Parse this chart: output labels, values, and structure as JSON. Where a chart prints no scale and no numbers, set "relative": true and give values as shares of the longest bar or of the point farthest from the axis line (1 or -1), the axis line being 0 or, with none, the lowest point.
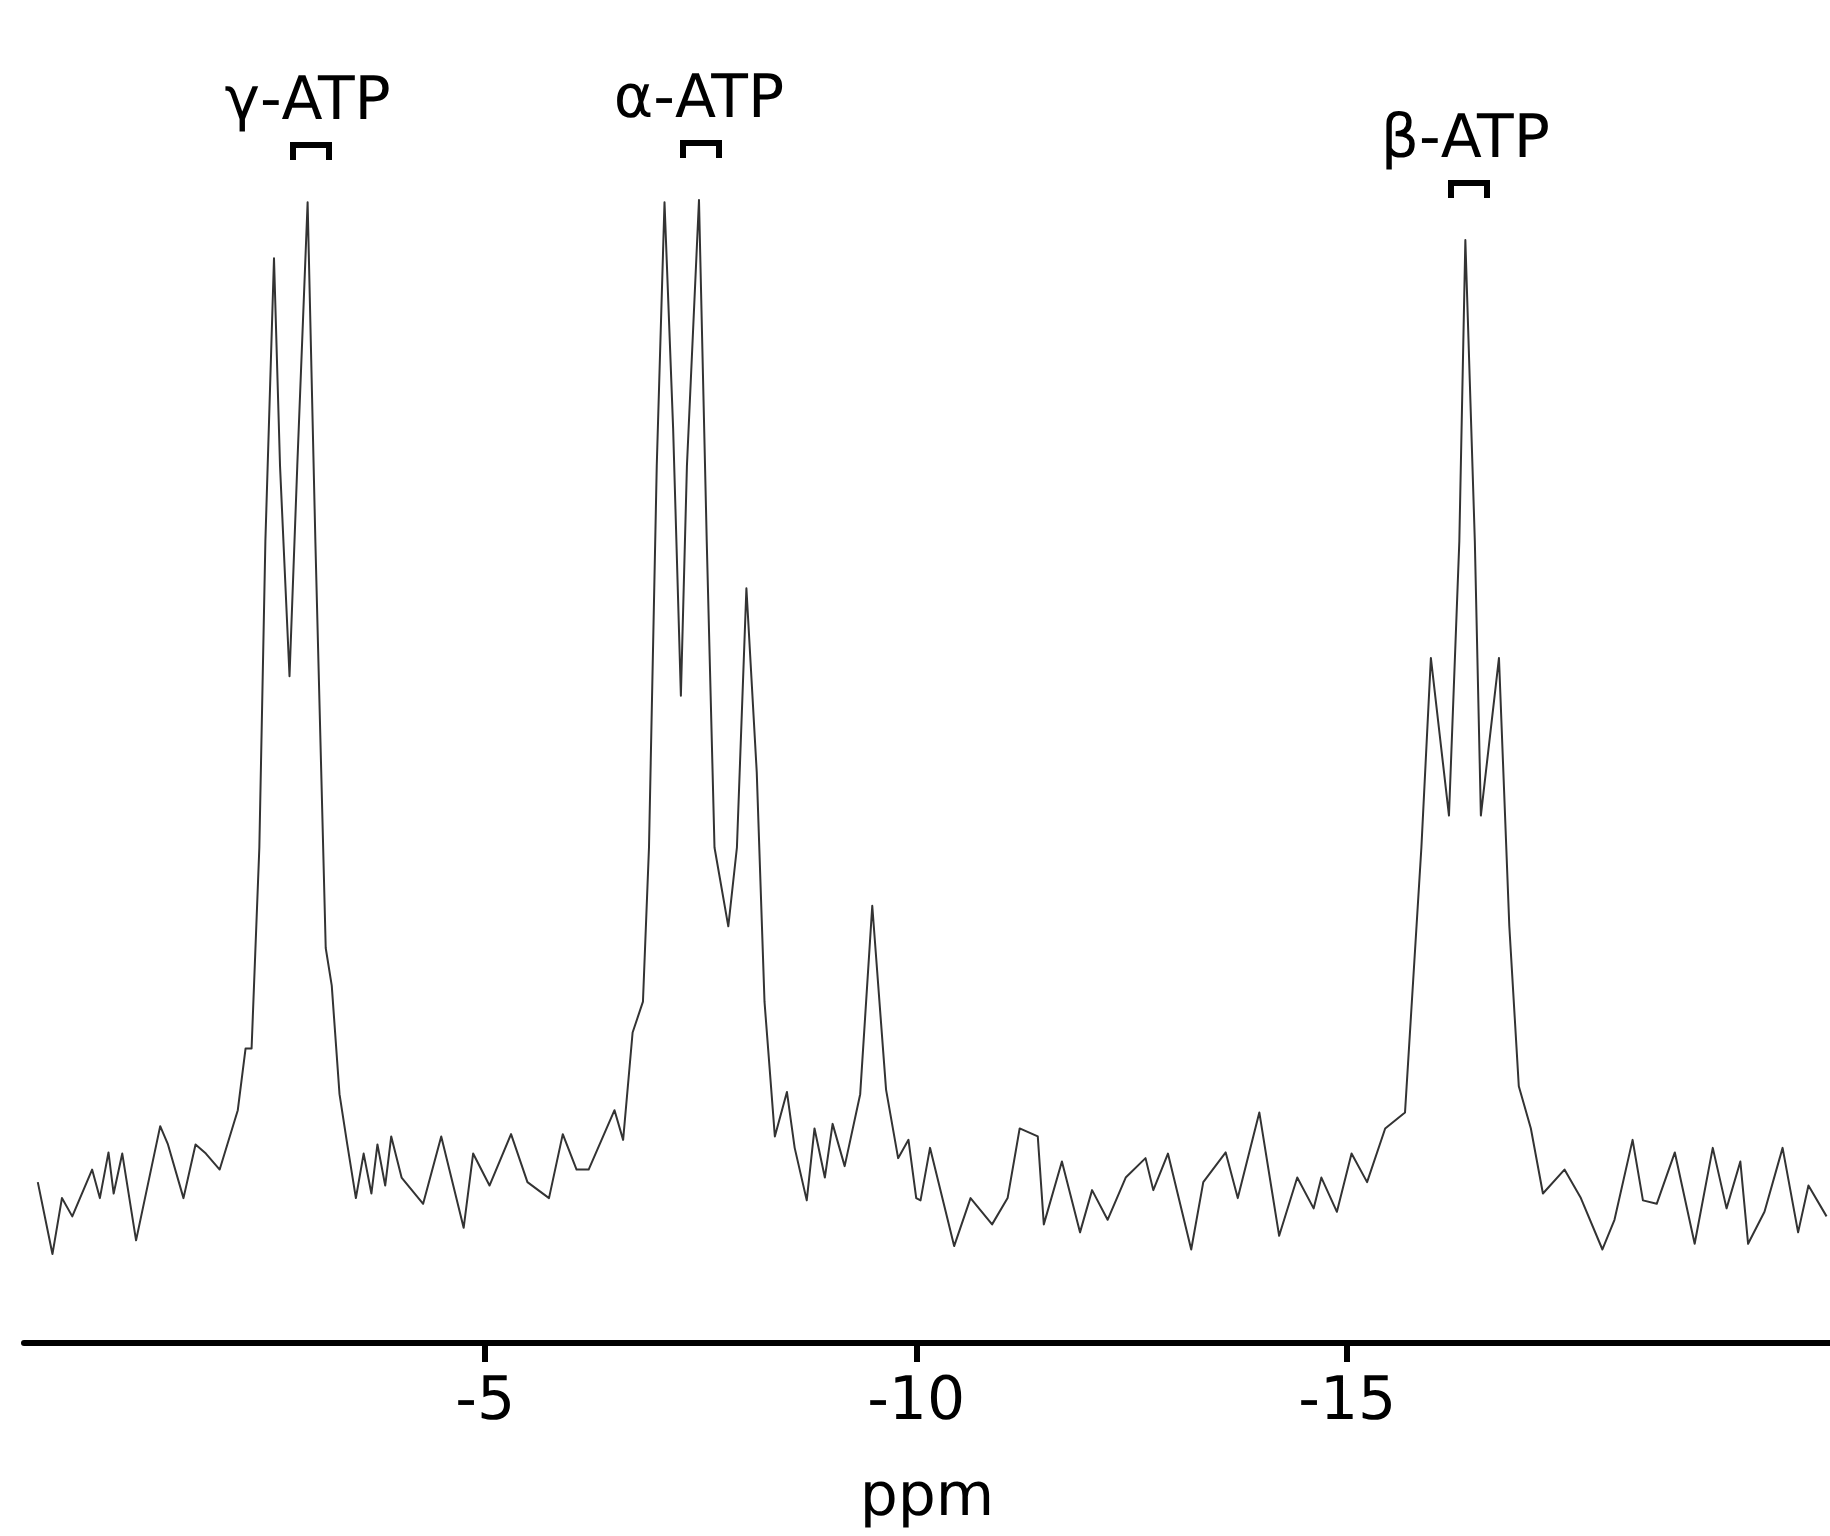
{
  "chart_data": {
    "type": "line",
    "relative": true,
    "xlabel": "ppm",
    "xlim": [
      0.35,
      -20.6
    ],
    "xticks": [
      -5,
      -10,
      -15
    ],
    "grid": false,
    "marker": "none",
    "line_style": "solid",
    "annotations": [
      {
        "text": "γ-ATP",
        "x": -2.94,
        "y": 0.998
      },
      {
        "text": "α-ATP",
        "x": -7.48,
        "y": 1.0
      },
      {
        "text": "β-ATP",
        "x": -16.37,
        "y": 0.965
      }
    ],
    "series": [
      {
        "color": "#333333",
        "x": [
          0.19,
          0.02,
          -0.09,
          -0.21,
          -0.44,
          -0.53,
          -0.63,
          -0.69,
          -0.79,
          -0.95,
          -1.23,
          -1.32,
          -1.5,
          -1.64,
          -1.76,
          -1.92,
          -2.13,
          -2.22,
          -2.29,
          -2.38,
          -2.45,
          -2.55,
          -2.62,
          -2.73,
          -2.82,
          -2.94,
          -3.03,
          -3.15,
          -3.22,
          -3.31,
          -3.4,
          -3.5,
          -3.59,
          -3.68,
          -3.75,
          -3.84,
          -3.91,
          -4.03,
          -4.28,
          -4.49,
          -4.75,
          -4.86,
          -5.05,
          -5.3,
          -5.49,
          -5.74,
          -5.9,
          -6.06,
          -6.2,
          -6.5,
          -6.6,
          -6.71,
          -6.83,
          -6.9,
          -6.99,
          -7.08,
          -7.18,
          -7.27,
          -7.34,
          -7.48,
          -7.57,
          -7.66,
          -7.82,
          -7.92,
          -8.03,
          -8.15,
          -8.24,
          -8.36,
          -8.5,
          -8.59,
          -8.73,
          -8.82,
          -8.94,
          -9.03,
          -9.17,
          -9.35,
          -9.49,
          -9.65,
          -9.79,
          -9.91,
          -10.0,
          -10.05,
          -10.16,
          -10.44,
          -10.63,
          -10.88,
          -11.06,
          -11.2,
          -11.41,
          -11.48,
          -11.69,
          -11.9,
          -12.04,
          -12.22,
          -12.43,
          -12.66,
          -12.75,
          -12.92,
          -13.19,
          -13.33,
          -13.59,
          -13.73,
          -13.98,
          -14.21,
          -14.42,
          -14.61,
          -14.7,
          -14.88,
          -15.05,
          -15.23,
          -15.44,
          -15.67,
          -15.86,
          -15.97,
          -16.18,
          -16.3,
          -16.37,
          -16.48,
          -16.55,
          -16.76,
          -16.88,
          -16.99,
          -17.13,
          -17.27,
          -17.52,
          -17.71,
          -17.96,
          -18.1,
          -18.31,
          -18.43,
          -18.59,
          -18.8,
          -19.03,
          -19.24,
          -19.4,
          -19.56,
          -19.65,
          -19.84,
          -20.05,
          -20.23,
          -20.35,
          -20.56
        ],
        "values": [
          0.14,
          0.077,
          0.126,
          0.11,
          0.151,
          0.126,
          0.166,
          0.13,
          0.165,
          0.089,
          0.189,
          0.173,
          0.126,
          0.173,
          0.165,
          0.151,
          0.203,
          0.257,
          0.257,
          0.433,
          0.701,
          0.949,
          0.767,
          0.583,
          0.767,
          0.998,
          0.701,
          0.345,
          0.312,
          0.217,
          0.173,
          0.126,
          0.165,
          0.13,
          0.173,
          0.137,
          0.18,
          0.144,
          0.121,
          0.18,
          0.1,
          0.165,
          0.137,
          0.182,
          0.14,
          0.126,
          0.182,
          0.151,
          0.151,
          0.203,
          0.177,
          0.271,
          0.298,
          0.433,
          0.767,
          0.998,
          0.8,
          0.566,
          0.767,
          1.0,
          0.701,
          0.433,
          0.364,
          0.433,
          0.66,
          0.499,
          0.298,
          0.18,
          0.219,
          0.17,
          0.124,
          0.187,
          0.144,
          0.191,
          0.154,
          0.217,
          0.382,
          0.221,
          0.161,
          0.177,
          0.126,
          0.124,
          0.17,
          0.084,
          0.126,
          0.103,
          0.126,
          0.187,
          0.18,
          0.103,
          0.158,
          0.096,
          0.133,
          0.107,
          0.144,
          0.161,
          0.133,
          0.165,
          0.081,
          0.14,
          0.166,
          0.126,
          0.201,
          0.093,
          0.144,
          0.117,
          0.144,
          0.114,
          0.165,
          0.14,
          0.187,
          0.201,
          0.433,
          0.599,
          0.461,
          0.701,
          0.965,
          0.701,
          0.461,
          0.599,
          0.364,
          0.224,
          0.187,
          0.13,
          0.151,
          0.126,
          0.081,
          0.107,
          0.177,
          0.124,
          0.121,
          0.166,
          0.086,
          0.17,
          0.117,
          0.158,
          0.086,
          0.114,
          0.17,
          0.096,
          0.137,
          0.11
        ]
      }
    ]
  }
}
